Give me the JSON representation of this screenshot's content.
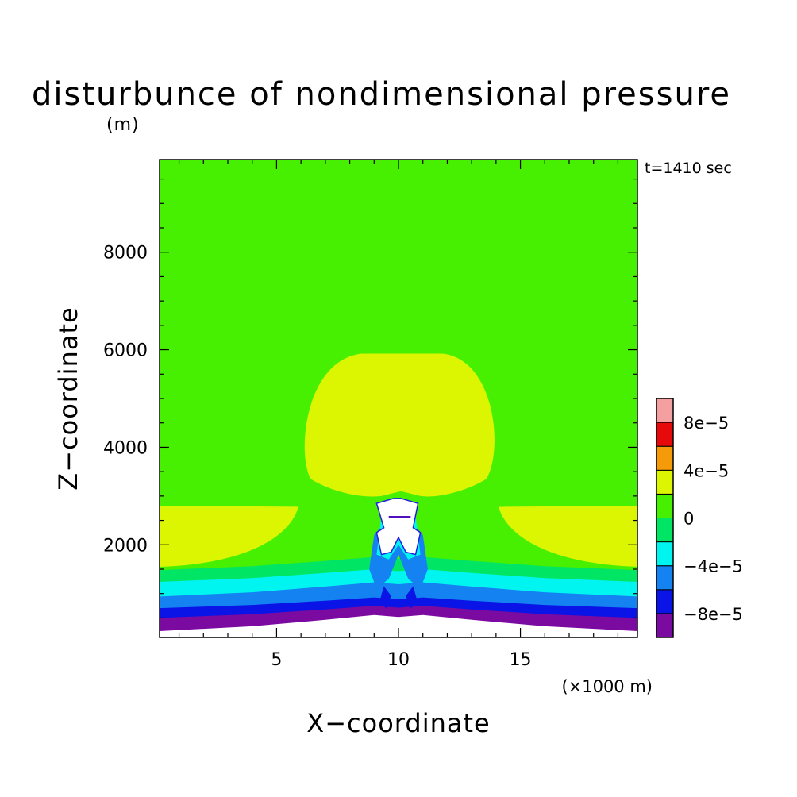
{
  "chart_data": {
    "type": "contour",
    "title": "disturbunce of nondimensional pressure",
    "yunit": "(m)",
    "time_label": "t=1410 sec",
    "xlabel": "X−coordinate",
    "ylabel": "Z−coordinate",
    "xunit": "(×1000 m)",
    "xlim": [
      0.2,
      19.8
    ],
    "ylim": [
      100,
      9900
    ],
    "xticks": [
      5,
      10,
      15
    ],
    "xtick_labels": [
      "5",
      "10",
      "15"
    ],
    "yticks": [
      2000,
      4000,
      6000,
      8000
    ],
    "ytick_labels": [
      "2000",
      "4000",
      "6000",
      "8000"
    ],
    "colorbar": {
      "levels": [
        -0.0001,
        -8e-05,
        -6e-05,
        -4e-05,
        -2e-05,
        0,
        2e-05,
        4e-05,
        6e-05,
        8e-05,
        0.0001
      ],
      "colors": [
        "#7a0aa0",
        "#0a14e6",
        "#1482f0",
        "#00f5f0",
        "#00e664",
        "#46f000",
        "#dcf500",
        "#f59b0a",
        "#e60a0a",
        "#f5a0a0"
      ],
      "tick_labels": [
        "8e−5",
        "4e−5",
        "0",
        "−4e−5",
        "−8e−5"
      ]
    },
    "regions": [
      {
        "level": "0 to 2e-5",
        "color": "#46f000",
        "desc": "background upper domain"
      },
      {
        "level": "2e-5 to 4e-5",
        "color": "#dcf500",
        "desc": "central dome ~3200-5900 m, x 6-14"
      },
      {
        "level": "2e-5 to 4e-5",
        "color": "#dcf500",
        "desc": "side lobes ~1500-2800 m at domain edges"
      },
      {
        "level": "-2e-5 to 0",
        "color": "#00e664",
        "desc": "layer ~1200-1600 m"
      },
      {
        "level": "-4e-5 to -2e-5",
        "color": "#00f5f0",
        "desc": "layer ~900-1250 m"
      },
      {
        "level": "-6e-5 to -4e-5",
        "color": "#1482f0",
        "desc": "layer ~700-950 m"
      },
      {
        "level": "-8e-5 to -6e-5",
        "color": "#0a14e6",
        "desc": "layer ~500-700 m"
      },
      {
        "level": "-1e-4 to -8e-5",
        "color": "#7a0aa0",
        "desc": "layer ~200-500 m"
      },
      {
        "level": "undefined",
        "color": "#ffffff",
        "desc": "blank core x 9-11, z 1700-2800 m and near ground"
      }
    ]
  }
}
